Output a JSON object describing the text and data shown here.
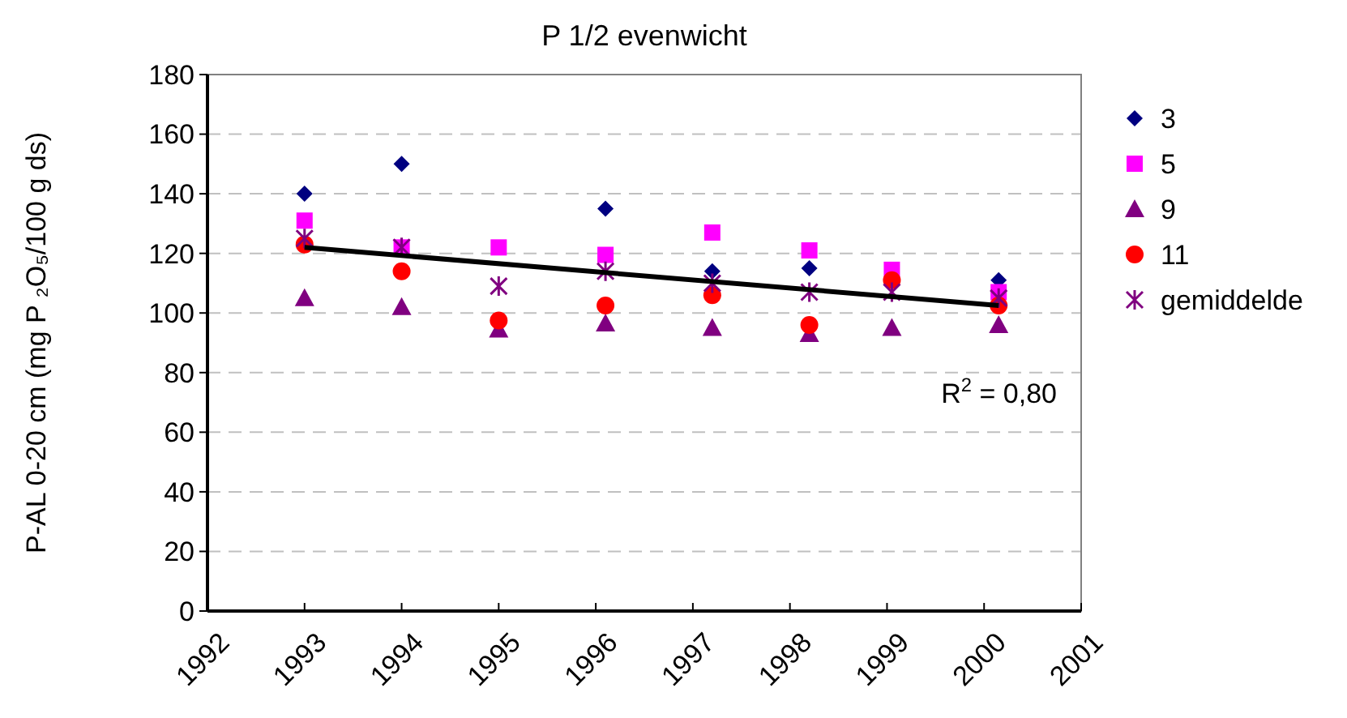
{
  "chart_data": {
    "type": "scatter",
    "title": "P 1/2 evenwicht",
    "ylabel": "P-AL 0-20 cm (mg P ₂O₅/100 g ds)",
    "xlim": [
      1992,
      2001
    ],
    "xticks": [
      1992,
      1993,
      1994,
      1995,
      1996,
      1997,
      1998,
      1999,
      2000,
      2001
    ],
    "ylim": [
      0,
      180
    ],
    "yticks": [
      0,
      20,
      40,
      60,
      80,
      100,
      120,
      140,
      160,
      180
    ],
    "grid": "y",
    "legend": "right",
    "x": [
      1993,
      1994,
      1995,
      1996.1,
      1997.2,
      1998.2,
      1999.05,
      2000.15
    ],
    "series": [
      {
        "name": "3",
        "color": "#000080",
        "marker": "diamond",
        "values": [
          140,
          150,
          null,
          135,
          114,
          115,
          null,
          111
        ]
      },
      {
        "name": "5",
        "color": "#ff00ff",
        "marker": "square",
        "values": [
          131,
          122,
          122,
          119.5,
          127,
          121,
          114.5,
          107
        ]
      },
      {
        "name": "9",
        "color": "#800080",
        "marker": "triangle",
        "values": [
          105,
          102,
          94.5,
          96.5,
          95,
          93,
          95,
          96
        ]
      },
      {
        "name": "11",
        "color": "#ff0000",
        "marker": "circle",
        "values": [
          123,
          114,
          97.5,
          102.5,
          106,
          96,
          111,
          102.5
        ]
      },
      {
        "name": "gemiddelde",
        "color": "#800080",
        "marker": "cross",
        "values": [
          125,
          122,
          109,
          114,
          110,
          107,
          107,
          105
        ]
      },
      {
        "type": "line",
        "color": "#000000",
        "marker": "none",
        "line_style": "solid",
        "x": [
          1993,
          2000.15
        ],
        "values": [
          122,
          102.5
        ]
      }
    ],
    "annotations": [
      "R$^{2}$ = 0,80"
    ]
  }
}
